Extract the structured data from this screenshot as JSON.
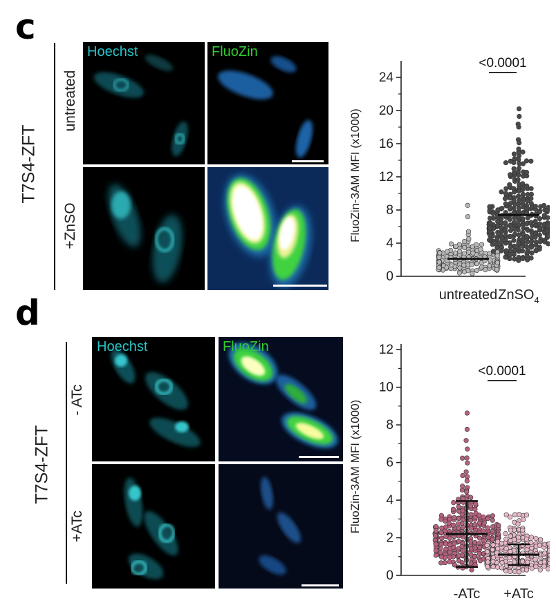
{
  "figure": {
    "panel_c": {
      "letter": "c",
      "strain": "T7S4-ZFT",
      "conditions": [
        "untreated",
        "+ZnSO"
      ],
      "channels": [
        "Hoechst",
        "FluoZin"
      ]
    },
    "panel_d": {
      "letter": "d",
      "strain": "T7S4-ZFT",
      "conditions": [
        "- ATc",
        "+ATc"
      ],
      "channels": [
        "Hoechst",
        "FluoZin"
      ]
    }
  },
  "colors": {
    "hoechst": "#29c6c9",
    "fluozin_label": "#2ecc2e",
    "gray_dots": "#b8b8b8",
    "dark_dots": "#4a4a4a",
    "pink_dark": "#b5627e",
    "pink_light": "#e6b7c6"
  },
  "chart_data": [
    {
      "type": "scatter",
      "subtype": "beeswarm",
      "ylabel": "FluoZin-3AM MFI (x1000)",
      "yticks": [
        "0",
        "4",
        "8",
        "12",
        "16",
        "20",
        "24"
      ],
      "ylim": [
        0,
        26
      ],
      "categories": [
        "untreated",
        "ZnSO4"
      ],
      "category_labels": [
        {
          "main": "untreated",
          "sub": ""
        },
        {
          "main": "ZnSO",
          "sub": "4"
        }
      ],
      "significance": "<0.0001",
      "series": [
        {
          "category": "untreated",
          "mean": 2.1,
          "sd": null,
          "min": 0,
          "max": 8.6,
          "n": 180,
          "color": "#b8b8b8"
        },
        {
          "category": "ZnSO4",
          "mean": 7.4,
          "sd": null,
          "min": 2.0,
          "max": 20.3,
          "n": 320,
          "color": "#4a4a4a"
        }
      ]
    },
    {
      "type": "scatter",
      "subtype": "beeswarm",
      "ylabel": "FluoZin-3AM MFI (x1000)",
      "yticks": [
        "0",
        "2",
        "4",
        "6",
        "8",
        "10",
        "12"
      ],
      "ylim": [
        0,
        12.3
      ],
      "categories": [
        "-ATc",
        "+ATc"
      ],
      "category_labels": [
        {
          "main": "-ATc",
          "sub": ""
        },
        {
          "main": "+ATc",
          "sub": ""
        }
      ],
      "significance": "<0.0001",
      "series": [
        {
          "category": "-ATc",
          "mean": 2.2,
          "sd": 1.75,
          "min": 0.3,
          "max": 8.6,
          "n": 300,
          "color": "#b5627e"
        },
        {
          "category": "+ATc",
          "mean": 1.1,
          "sd": 0.55,
          "min": 0.1,
          "max": 3.2,
          "n": 300,
          "color": "#e6b7c6"
        }
      ]
    }
  ]
}
